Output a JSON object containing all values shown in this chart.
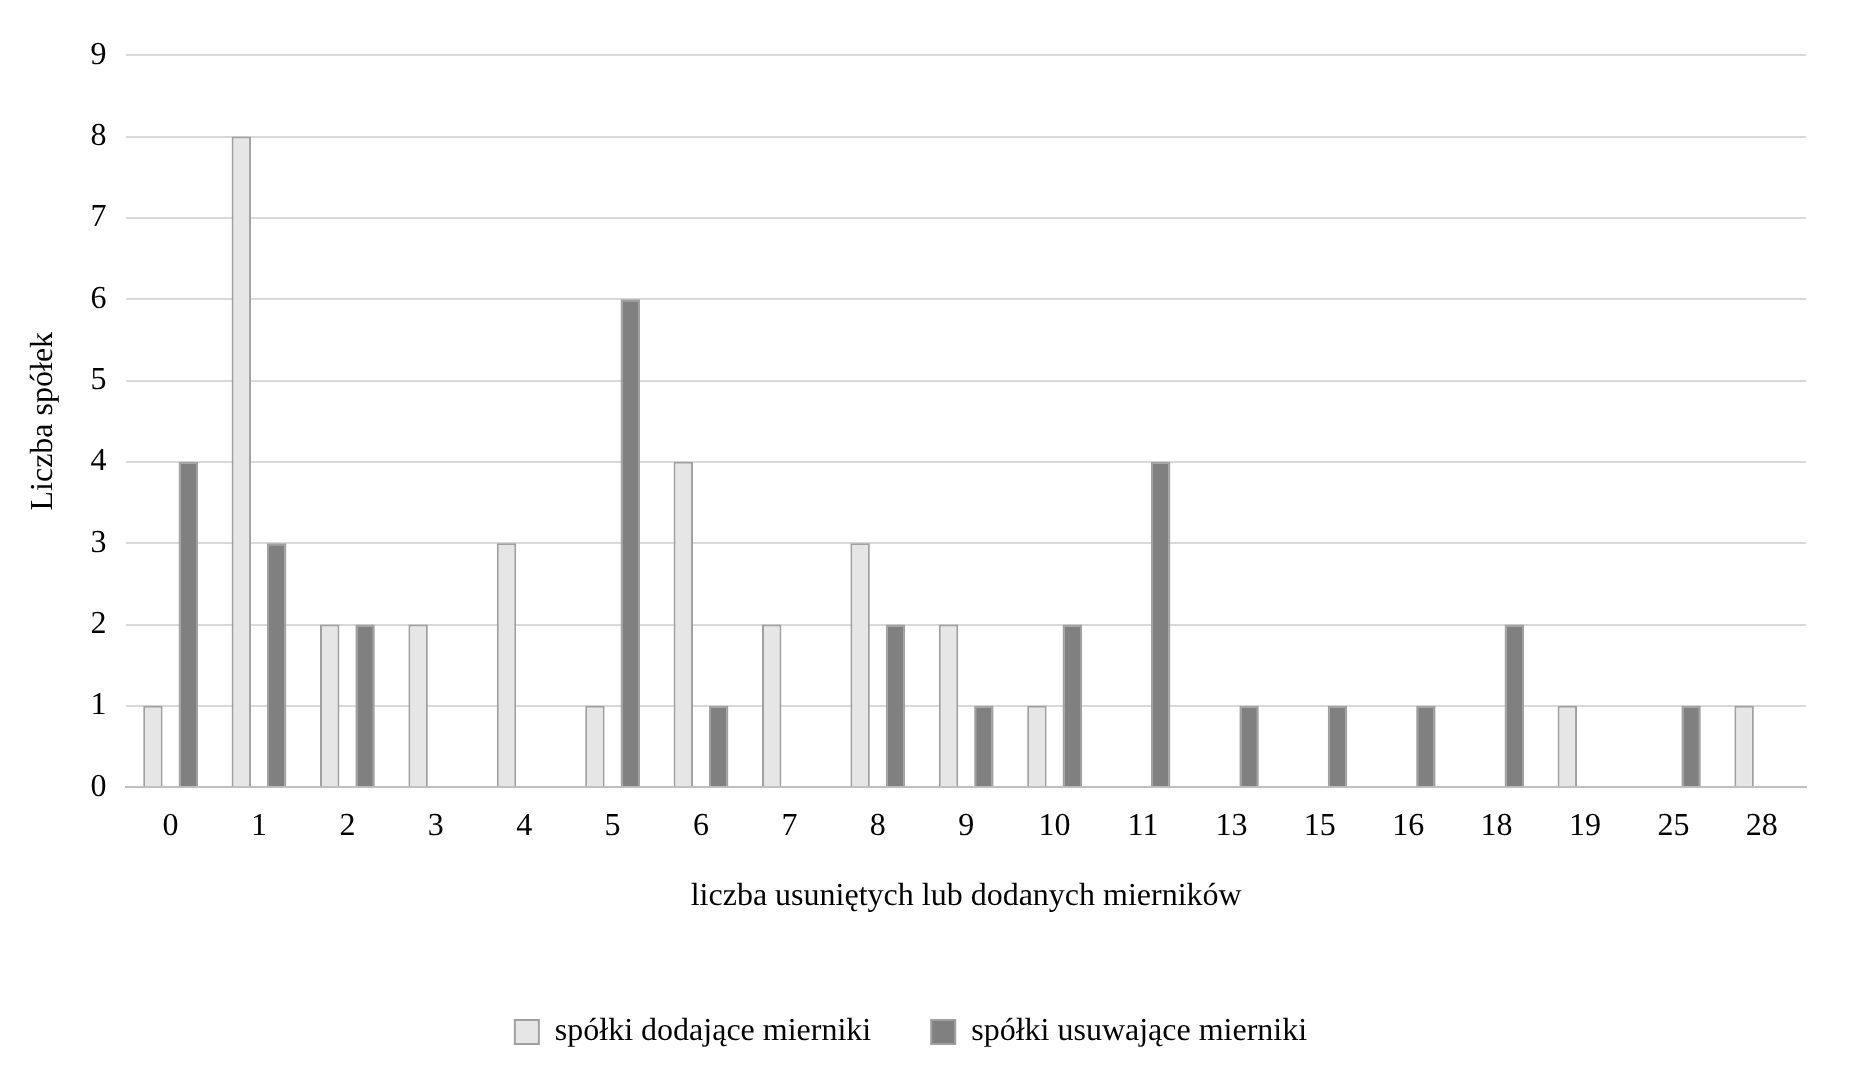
{
  "chart_data": {
    "type": "bar",
    "xlabel": "liczba usuniętych lub dodanych mierników",
    "ylabel": "Liczba spółek",
    "categories": [
      "0",
      "1",
      "2",
      "3",
      "4",
      "5",
      "6",
      "7",
      "8",
      "9",
      "10",
      "11",
      "13",
      "15",
      "16",
      "18",
      "19",
      "25",
      "28"
    ],
    "series": [
      {
        "name": "spółki dodające mierniki",
        "color": "#e6e6e6",
        "values": [
          1,
          8,
          2,
          2,
          3,
          1,
          4,
          2,
          3,
          2,
          1,
          0,
          0,
          0,
          0,
          0,
          1,
          0,
          1
        ]
      },
      {
        "name": "spółki usuwające mierniki",
        "color": "#808080",
        "values": [
          4,
          3,
          2,
          0,
          0,
          6,
          1,
          0,
          2,
          1,
          2,
          4,
          1,
          1,
          1,
          2,
          0,
          1,
          0
        ]
      }
    ],
    "ylim": [
      0,
      9
    ],
    "yticks": [
      0,
      1,
      2,
      3,
      4,
      5,
      6,
      7,
      8,
      9
    ],
    "grid": "y",
    "legend": "bottom"
  }
}
